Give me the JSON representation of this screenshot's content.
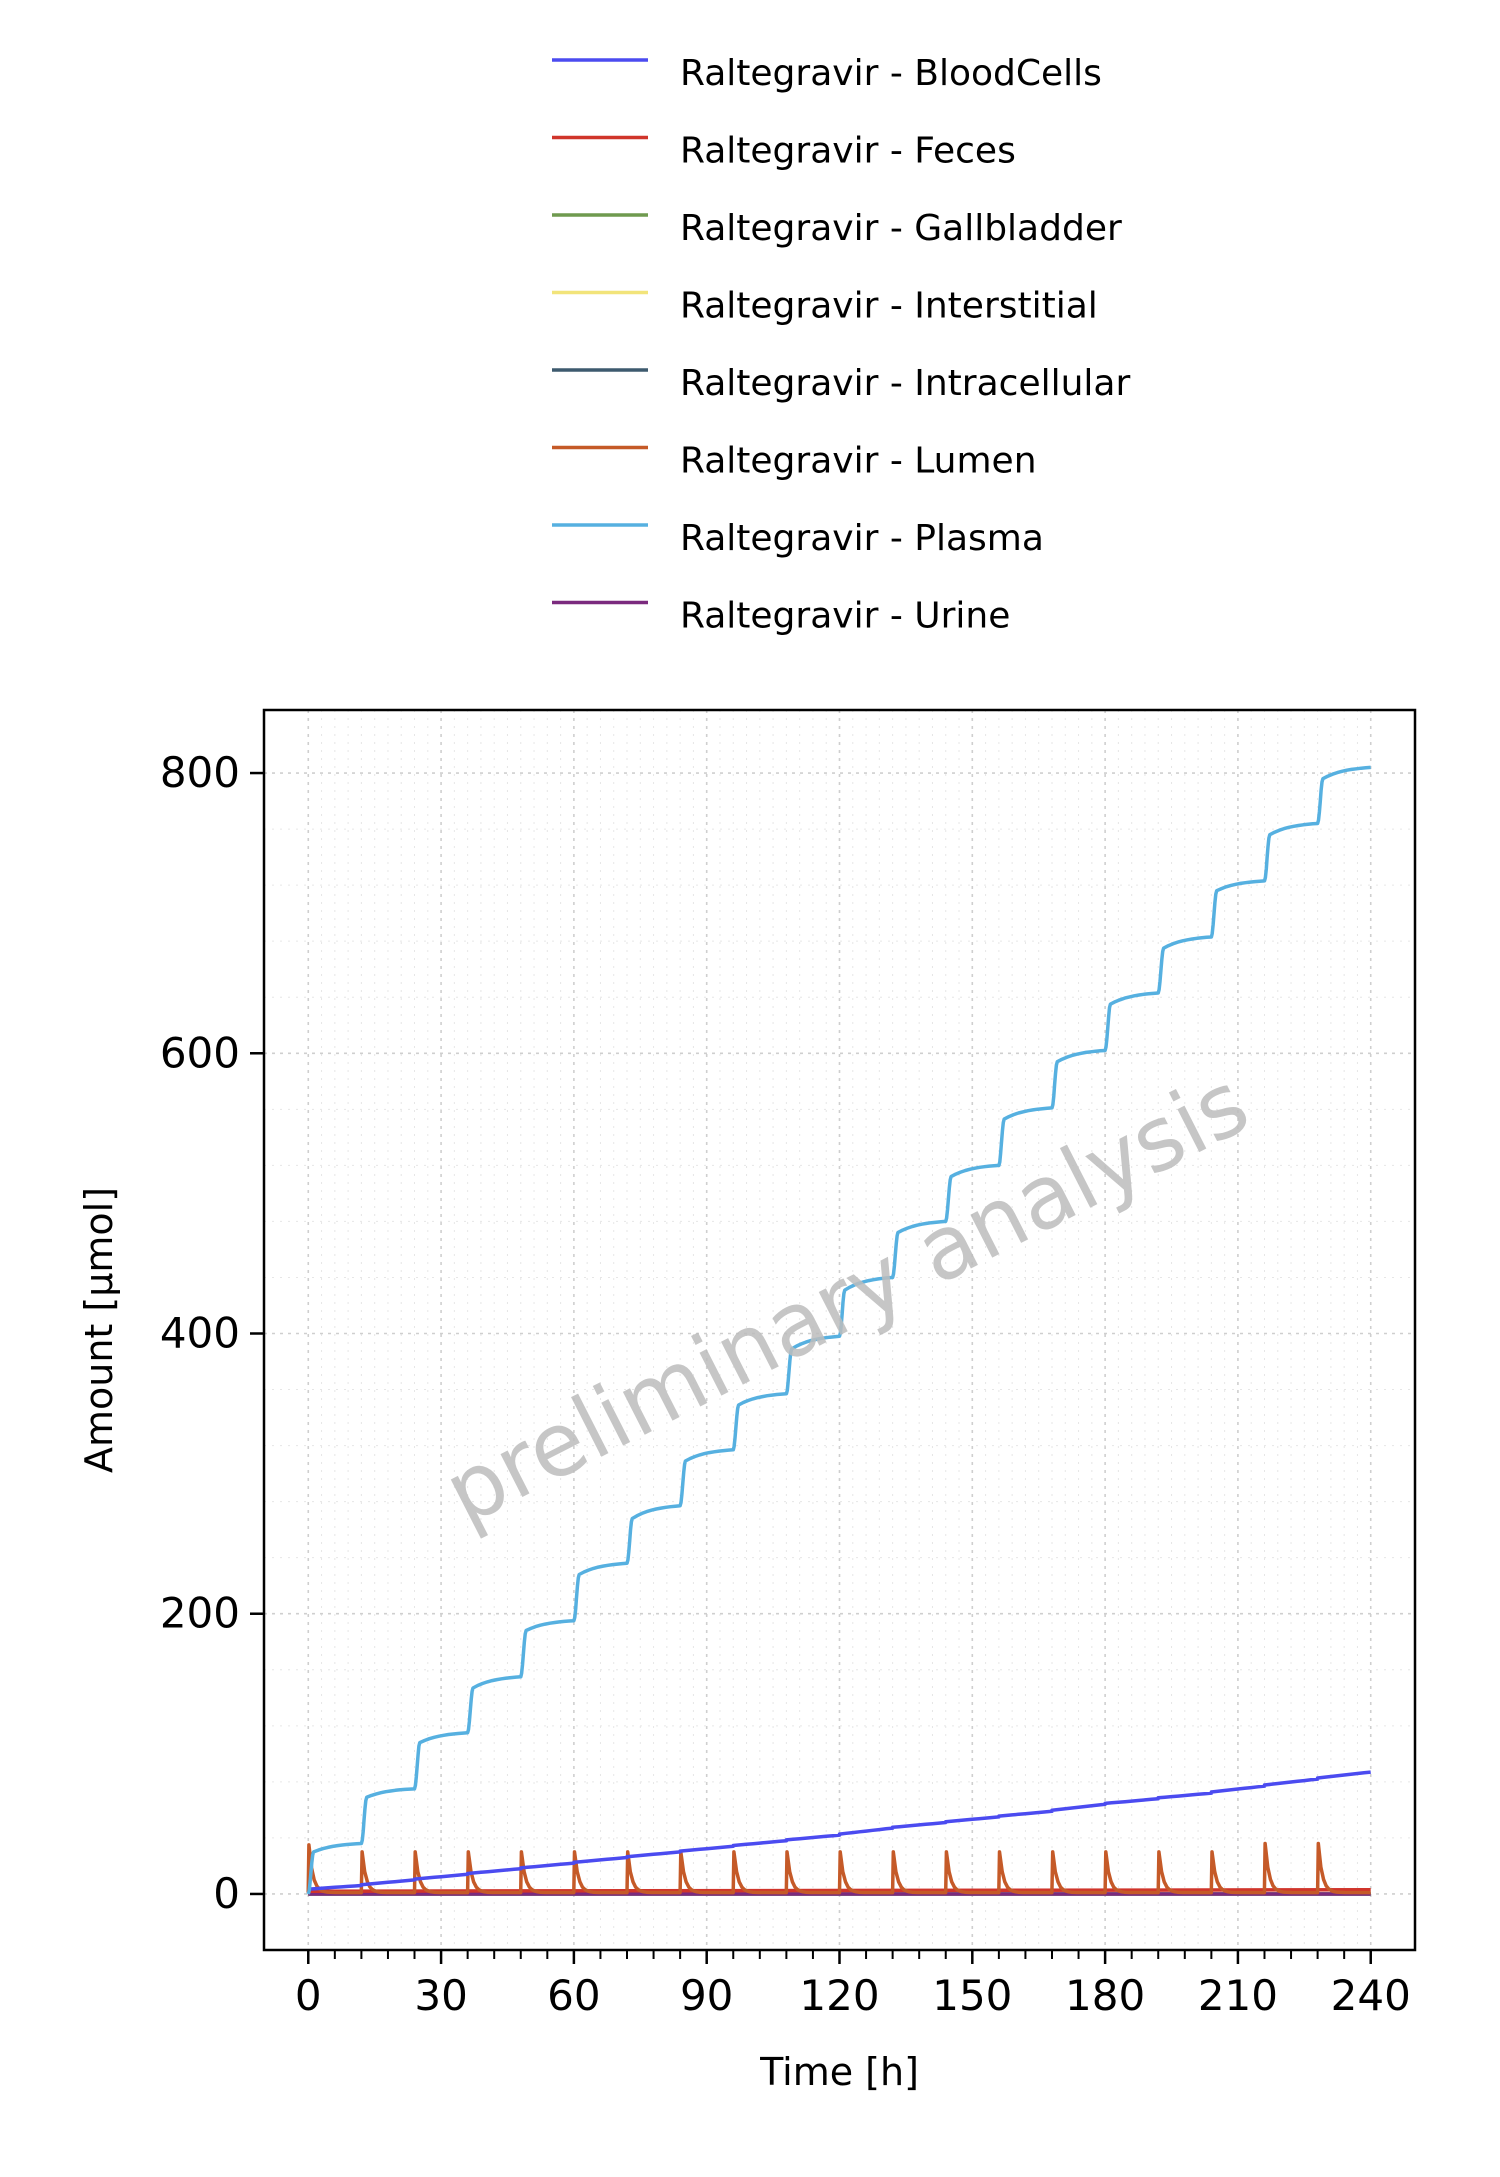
{
  "chart_data": {
    "type": "line",
    "xlabel": "Time [h]",
    "ylabel": "Amount [µmol]",
    "watermark": "preliminary analysis",
    "xlim": [
      -10,
      250
    ],
    "ylim": [
      -40,
      845
    ],
    "xticks": [
      0,
      30,
      60,
      90,
      120,
      150,
      180,
      210,
      240
    ],
    "yticks": [
      0,
      200,
      400,
      600,
      800
    ],
    "grid": true,
    "legend_position": "top",
    "dose_interval_h": 12,
    "dose_times_h": [
      0,
      12,
      24,
      36,
      48,
      60,
      72,
      84,
      96,
      108,
      120,
      132,
      144,
      156,
      168,
      180,
      192,
      204,
      216,
      228
    ],
    "series": [
      {
        "name": "Raltegravir - BloodCells",
        "color": "#4b4bf0",
        "x": [
          0,
          12,
          24,
          36,
          48,
          60,
          72,
          84,
          96,
          108,
          120,
          132,
          144,
          156,
          168,
          180,
          192,
          204,
          216,
          228,
          240
        ],
        "y": [
          3,
          6,
          10,
          14,
          18,
          22,
          26,
          30,
          34,
          38,
          42,
          47,
          51,
          55,
          59,
          64,
          68,
          72,
          77,
          82,
          87
        ]
      },
      {
        "name": "Raltegravir - Feces",
        "color": "#d0352b",
        "x": [
          0,
          240
        ],
        "y": [
          2,
          3
        ]
      },
      {
        "name": "Raltegravir - Gallbladder",
        "color": "#6f9a4f",
        "x": [
          0,
          240
        ],
        "y": [
          0,
          0
        ]
      },
      {
        "name": "Raltegravir - Interstitial",
        "color": "#f2e47a",
        "x": [
          0,
          240
        ],
        "y": [
          0,
          0
        ]
      },
      {
        "name": "Raltegravir - Intracellular",
        "color": "#3d5a6e",
        "x": [
          0,
          240
        ],
        "y": [
          0,
          0
        ]
      },
      {
        "name": "Raltegravir - Lumen",
        "color": "#c55a28",
        "peak_values": [
          35,
          30,
          30,
          30,
          30,
          30,
          30,
          30,
          30,
          30,
          30,
          30,
          30,
          30,
          30,
          30,
          30,
          30,
          36,
          36
        ],
        "baseline": 1
      },
      {
        "name": "Raltegravir - Plasma",
        "color": "#56b0e0",
        "x": [
          0,
          12,
          24,
          36,
          48,
          60,
          72,
          84,
          96,
          108,
          120,
          132,
          144,
          156,
          168,
          180,
          192,
          204,
          216,
          228,
          240
        ],
        "pre_dose_y": [
          0,
          36,
          75,
          115,
          155,
          195,
          236,
          277,
          317,
          357,
          398,
          440,
          480,
          520,
          561,
          602,
          643,
          683,
          723,
          764,
          804
        ],
        "post_jump_y": [
          30,
          69,
          108,
          147,
          188,
          228,
          268,
          309,
          349,
          389,
          431,
          472,
          512,
          553,
          594,
          635,
          675,
          716,
          756,
          796
        ]
      },
      {
        "name": "Raltegravir - Urine",
        "color": "#7b2a7e",
        "x": [
          0,
          240
        ],
        "y": [
          0,
          0
        ]
      }
    ]
  }
}
